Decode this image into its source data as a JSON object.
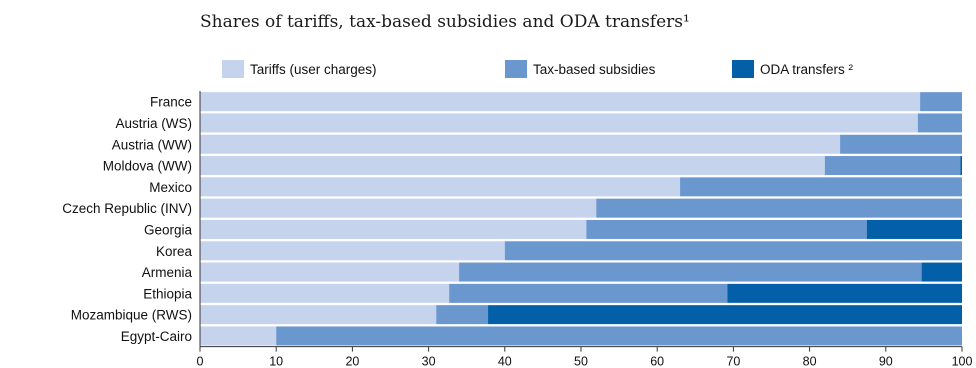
{
  "chart_data": {
    "type": "bar",
    "orientation": "horizontal",
    "stacked": true,
    "title": "Shares of tariffs, tax-based subsidies and ODA transfers¹",
    "xlabel": "",
    "ylabel": "",
    "xlim": [
      0,
      100
    ],
    "xticks": [
      0,
      10,
      20,
      30,
      40,
      50,
      60,
      70,
      80,
      90,
      100
    ],
    "legend_position": "top",
    "categories": [
      "France",
      "Austria (WS)",
      "Austria (WW)",
      "Moldova (WW)",
      "Mexico",
      "Czech Republic (INV)",
      "Georgia",
      "Korea",
      "Armenia",
      "Ethiopia",
      "Mozambique (RWS)",
      "Egypt-Cairo"
    ],
    "series": [
      {
        "name": "Tariffs (user charges)",
        "color": "#c5d3ec",
        "values": [
          94.5,
          94.2,
          84,
          82,
          63,
          52,
          50.7,
          40,
          34,
          32.7,
          31,
          10
        ]
      },
      {
        "name": "Tax-based subsidies",
        "color": "#6b97cf",
        "values": [
          5.5,
          5.8,
          16,
          17.8,
          37,
          48,
          36.8,
          60,
          60.7,
          36.5,
          6.8,
          90
        ]
      },
      {
        "name": "ODA transfers ²",
        "color": "#0360a8",
        "values": [
          0,
          0,
          0,
          0.2,
          0,
          0,
          12.5,
          0,
          5.3,
          30.8,
          62.2,
          0
        ]
      }
    ]
  }
}
